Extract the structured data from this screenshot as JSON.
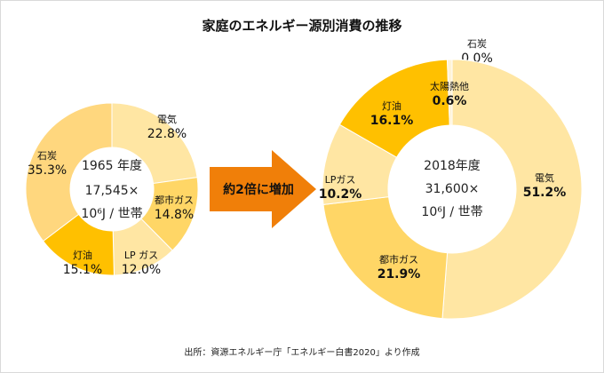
{
  "title": "家庭のエネルギー源別消費の推移",
  "arrow_label": "約2倍に増加",
  "source": "出所：資源エネルギー庁「エネルギー白書2020」より作成",
  "colors": {
    "arrow": "#F07F09"
  },
  "chart_data": [
    {
      "type": "pie",
      "donut": true,
      "center_text": [
        "1965 年度",
        "17,545×",
        "10⁶J / 世帯"
      ],
      "slices": [
        {
          "label": "電気",
          "value": 22.8,
          "display": "22.8%",
          "color": "#FFE6A3"
        },
        {
          "label": "都市ガス",
          "value": 14.8,
          "display": "14.8%",
          "color": "#FFD666"
        },
        {
          "label": "LP ガス",
          "value": 12.0,
          "display": "12.0%",
          "color": "#FFE6A3"
        },
        {
          "label": "灯油",
          "value": 15.1,
          "display": "15.1%",
          "color": "#FFC000"
        },
        {
          "label": "石炭",
          "value": 35.3,
          "display": "35.3%",
          "color": "#FFD77E"
        }
      ]
    },
    {
      "type": "pie",
      "donut": true,
      "center_text": [
        "2018年度",
        "31,600×",
        "10⁶J / 世帯"
      ],
      "slices": [
        {
          "label": "石炭",
          "value": 0.0,
          "display": "0.0%",
          "color": "#FFD77E"
        },
        {
          "label": "電気",
          "value": 51.2,
          "display": "51.2%",
          "color": "#FFE6A3"
        },
        {
          "label": "都市ガス",
          "value": 21.9,
          "display": "21.9%",
          "color": "#FFD666"
        },
        {
          "label": "LPガス",
          "value": 10.2,
          "display": "10.2%",
          "color": "#FFE6A3"
        },
        {
          "label": "灯油",
          "value": 16.1,
          "display": "16.1%",
          "color": "#FFC000"
        },
        {
          "label": "太陽熱他",
          "value": 0.6,
          "display": "0.6%",
          "color": "#FFF3D6"
        }
      ]
    }
  ]
}
